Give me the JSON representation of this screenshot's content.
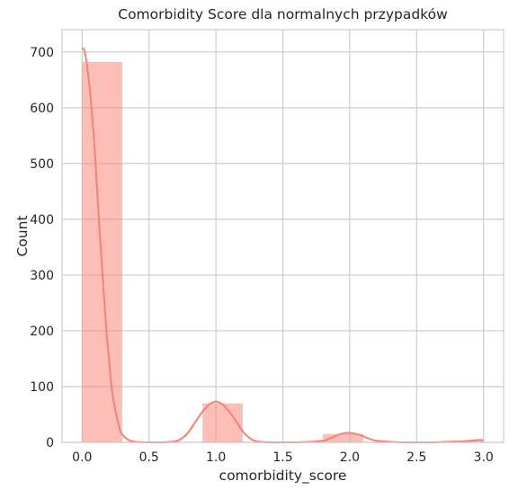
{
  "chart_data": {
    "type": "bar",
    "title": "Comorbidity Score dla normalnych przypadków",
    "xlabel": "comorbidity_score",
    "ylabel": "Count",
    "xlim": [
      -0.15,
      3.15
    ],
    "ylim": [
      0,
      740
    ],
    "xticks": [
      0.0,
      0.5,
      1.0,
      1.5,
      2.0,
      2.5,
      3.0
    ],
    "xtick_labels": [
      "0.0",
      "0.5",
      "1.0",
      "1.5",
      "2.0",
      "2.5",
      "3.0"
    ],
    "yticks": [
      0,
      100,
      200,
      300,
      400,
      500,
      600,
      700
    ],
    "ytick_labels": [
      "0",
      "100",
      "200",
      "300",
      "400",
      "500",
      "600",
      "700"
    ],
    "grid": true,
    "bar_color": "#fa8072",
    "bins": [
      {
        "x0": 0.0,
        "x1": 0.3,
        "count": 682
      },
      {
        "x0": 0.3,
        "x1": 0.6,
        "count": 0
      },
      {
        "x0": 0.6,
        "x1": 0.9,
        "count": 0
      },
      {
        "x0": 0.9,
        "x1": 1.2,
        "count": 70
      },
      {
        "x0": 1.2,
        "x1": 1.5,
        "count": 0
      },
      {
        "x0": 1.5,
        "x1": 1.8,
        "count": 0
      },
      {
        "x0": 1.8,
        "x1": 2.1,
        "count": 15
      },
      {
        "x0": 2.1,
        "x1": 2.4,
        "count": 0
      },
      {
        "x0": 2.4,
        "x1": 2.7,
        "count": 0
      },
      {
        "x0": 2.7,
        "x1": 3.0,
        "count": 3
      }
    ],
    "kde_points": [
      [
        0.0,
        707
      ],
      [
        0.02,
        700
      ],
      [
        0.05,
        650
      ],
      [
        0.08,
        570
      ],
      [
        0.1,
        500
      ],
      [
        0.12,
        420
      ],
      [
        0.15,
        310
      ],
      [
        0.18,
        205
      ],
      [
        0.2,
        150
      ],
      [
        0.22,
        100
      ],
      [
        0.25,
        55
      ],
      [
        0.28,
        25
      ],
      [
        0.3,
        14
      ],
      [
        0.35,
        4
      ],
      [
        0.4,
        1
      ],
      [
        0.5,
        0
      ],
      [
        0.6,
        0
      ],
      [
        0.7,
        2
      ],
      [
        0.75,
        8
      ],
      [
        0.8,
        20
      ],
      [
        0.85,
        38
      ],
      [
        0.9,
        55
      ],
      [
        0.95,
        68
      ],
      [
        1.0,
        73
      ],
      [
        1.05,
        68
      ],
      [
        1.1,
        55
      ],
      [
        1.15,
        38
      ],
      [
        1.2,
        20
      ],
      [
        1.25,
        8
      ],
      [
        1.3,
        2
      ],
      [
        1.4,
        0
      ],
      [
        1.6,
        0
      ],
      [
        1.8,
        3
      ],
      [
        1.85,
        7
      ],
      [
        1.9,
        12
      ],
      [
        1.95,
        16
      ],
      [
        2.0,
        17
      ],
      [
        2.05,
        15
      ],
      [
        2.1,
        11
      ],
      [
        2.15,
        6
      ],
      [
        2.2,
        3
      ],
      [
        2.3,
        1
      ],
      [
        2.4,
        0
      ],
      [
        2.6,
        0
      ],
      [
        2.75,
        1
      ],
      [
        2.85,
        2
      ],
      [
        2.95,
        4
      ],
      [
        3.0,
        4
      ]
    ]
  }
}
